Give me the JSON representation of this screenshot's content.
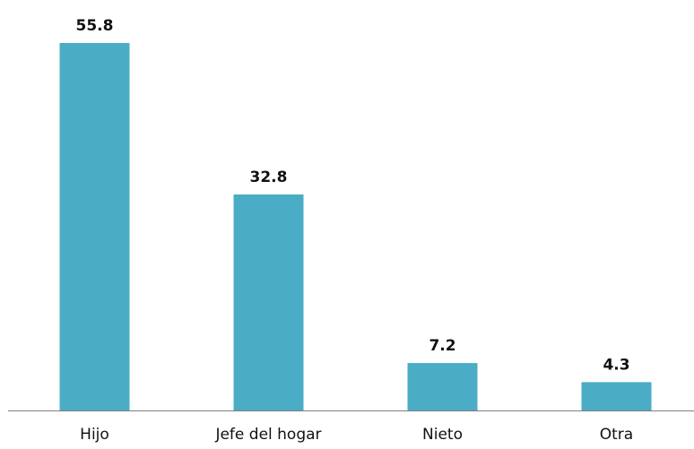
{
  "chart_data": {
    "type": "bar",
    "categories": [
      "Hijo",
      "Jefe del hogar",
      "Nieto",
      "Otra"
    ],
    "values": [
      55.8,
      32.8,
      7.2,
      4.3
    ],
    "data_labels": [
      "55.8",
      "32.8",
      "7.2",
      "4.3"
    ],
    "title": "",
    "xlabel": "",
    "ylabel": "",
    "ylim": [
      0,
      55.8
    ],
    "grid": false,
    "legend": "none",
    "colors": {
      "bar": "#4bacc6",
      "axis": "#7f7f7f",
      "text": "#111111"
    }
  }
}
